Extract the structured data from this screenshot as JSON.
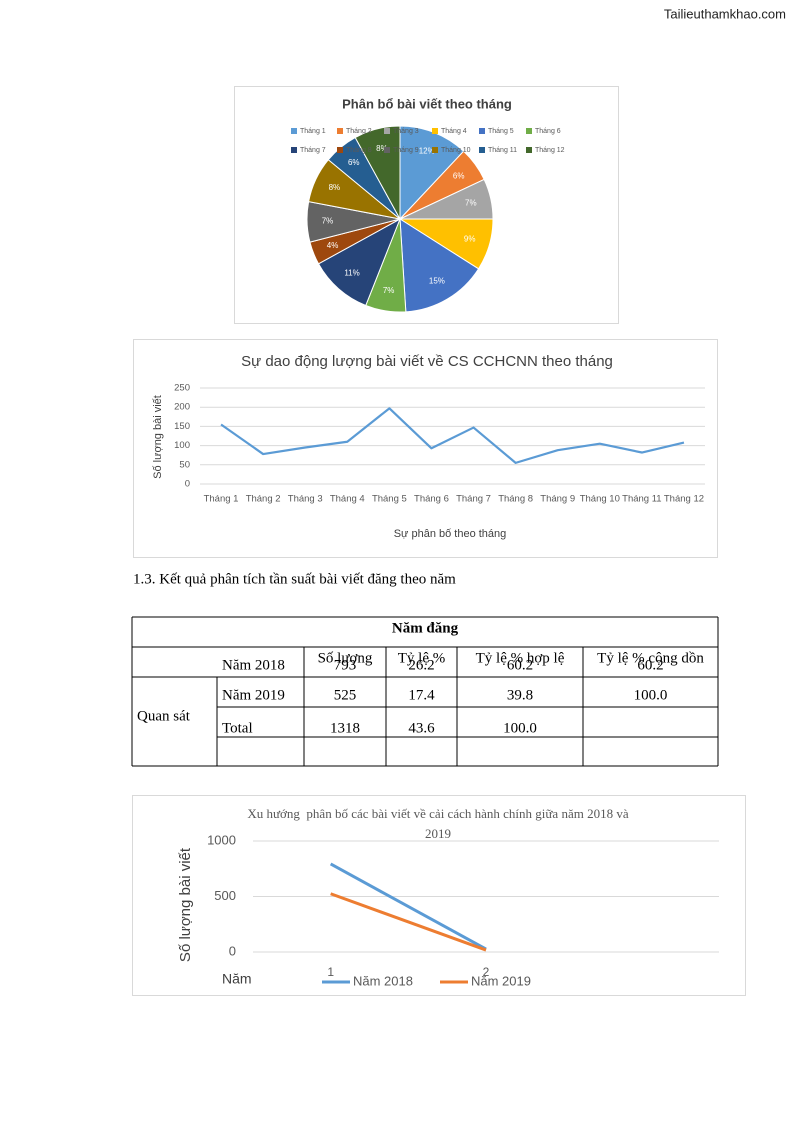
{
  "watermark": "Tailieuthamkhao.com",
  "chart_data": [
    {
      "type": "pie",
      "title": "Phân bổ bài viết theo tháng",
      "categories": [
        "Tháng 1",
        "Tháng 2",
        "Tháng 3",
        "Tháng 4",
        "Tháng 5",
        "Tháng 6",
        "Tháng 7",
        "Tháng 8",
        "Tháng 9",
        "Tháng 10",
        "Tháng 11",
        "Tháng 12"
      ],
      "values": [
        12,
        6,
        7,
        9,
        15,
        7,
        11,
        4,
        7,
        8,
        6,
        8
      ],
      "value_labels": [
        "12%",
        "6%",
        "7%",
        "9%",
        "15%",
        "7%",
        "11%",
        "4%",
        "7%",
        "8%",
        "6%",
        "8%"
      ],
      "colors": [
        "#5b9bd5",
        "#ed7d31",
        "#a5a5a5",
        "#ffc000",
        "#4472c4",
        "#70ad47",
        "#264478",
        "#9e480e",
        "#636363",
        "#997300",
        "#255e91",
        "#43682b"
      ],
      "legend": "top"
    },
    {
      "type": "line",
      "title": "Sự dao động lượng bài viết về CS CCHCNN theo tháng",
      "y_label": "Số lượng bài viết",
      "x_label": "Sự phân bố theo tháng",
      "categories": [
        "Tháng 1",
        "Tháng 2",
        "Tháng 3",
        "Tháng 4",
        "Tháng 5",
        "Tháng 6",
        "Tháng 7",
        "Tháng 8",
        "Tháng 9",
        "Tháng 10",
        "Tháng 11",
        "Tháng 12"
      ],
      "values": [
        155,
        78,
        95,
        110,
        197,
        93,
        147,
        55,
        88,
        105,
        82,
        108
      ],
      "color": "#5b9bd5",
      "ylim": [
        0,
        250
      ],
      "yticks": [
        0,
        50,
        100,
        150,
        200,
        250
      ],
      "grid": true
    },
    {
      "type": "line",
      "title": "Xu hướng  phân bố các bài viết về cải cách hành chính giữa năm 2018 và 2019",
      "y_label": "Số lượng bài viết",
      "x_label": "Năm",
      "categories": [
        "1",
        "2",
        null
      ],
      "series": [
        {
          "name": "Năm 2018",
          "color": "#5b9bd5",
          "values": [
            793,
            26.2,
            null
          ]
        },
        {
          "name": "Năm 2019",
          "color": "#ed7d31",
          "values": [
            525,
            17.4,
            null
          ]
        }
      ],
      "ylim": [
        0,
        1000
      ],
      "yticks": [
        0,
        500,
        1000
      ],
      "grid": true,
      "legend": "bottom"
    }
  ],
  "heading": "1.3. Kết quả phân tích tần suất bài viết đăng theo năm",
  "table": {
    "title": "Năm đăng",
    "columns": [
      "Số lượng",
      "Tỷ lệ %",
      "Tỷ lệ % hợp lệ",
      "Tỷ lệ % cộng dồn"
    ],
    "group": "Quan sát",
    "rows": [
      [
        "Năm 2018",
        "793",
        "26.2",
        "60.2",
        "60.2"
      ],
      [
        "Năm 2019",
        "525",
        "17.4",
        "39.8",
        "100.0"
      ],
      [
        "Total",
        "1318",
        "43.6",
        "100.0"
      ]
    ]
  }
}
